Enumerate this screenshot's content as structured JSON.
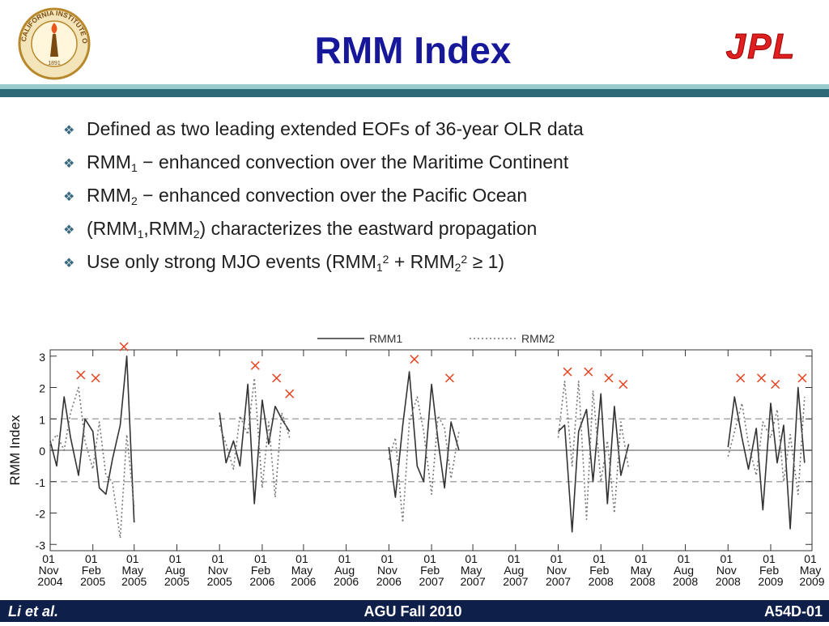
{
  "header": {
    "title": "RMM Index",
    "left_logo": {
      "ring": "CALIFORNIA INSTITUTE OF TECHNOLOGY",
      "year": "1891"
    },
    "right_logo": "JPL"
  },
  "bullets": [
    [
      {
        "t": "Defined as two leading extended EOFs of 36-year OLR data",
        "s": "normal"
      }
    ],
    [
      {
        "t": "RMM",
        "s": "normal"
      },
      {
        "t": "1",
        "s": "sub"
      },
      {
        "t": " − enhanced convection over the Maritime Continent",
        "s": "normal"
      }
    ],
    [
      {
        "t": "RMM",
        "s": "normal"
      },
      {
        "t": "2",
        "s": "sub"
      },
      {
        "t": " − enhanced convection over the Pacific Ocean",
        "s": "normal"
      }
    ],
    [
      {
        "t": "(RMM",
        "s": "normal"
      },
      {
        "t": "1",
        "s": "sub"
      },
      {
        "t": ",RMM",
        "s": "normal"
      },
      {
        "t": "2",
        "s": "sub"
      },
      {
        "t": ") characterizes the eastward propagation",
        "s": "normal"
      }
    ],
    [
      {
        "t": "Use only strong MJO events (RMM",
        "s": "normal"
      },
      {
        "t": "1",
        "s": "sub"
      },
      {
        "t": "2",
        "s": "sup"
      },
      {
        "t": " + RMM",
        "s": "normal"
      },
      {
        "t": "2",
        "s": "sub"
      },
      {
        "t": "2",
        "s": "sup"
      },
      {
        "t": " ≥ 1)",
        "s": "normal"
      }
    ]
  ],
  "chart_data": {
    "type": "line",
    "y_label": "RMM Index",
    "x": [
      "2004-11-01",
      "2004-11-15",
      "2004-12-01",
      "2004-12-15",
      "2005-01-01",
      "2005-01-15",
      "2005-02-01",
      "2005-02-15",
      "2005-03-01",
      "2005-03-15",
      "2005-04-01",
      "2005-04-15",
      "2005-05-01",
      "2005-08-01",
      "2005-11-01",
      "2005-11-15",
      "2005-12-01",
      "2005-12-15",
      "2006-01-01",
      "2006-01-15",
      "2006-02-01",
      "2006-02-15",
      "2006-03-01",
      "2006-03-15",
      "2006-04-01",
      "2006-08-01",
      "2006-11-01",
      "2006-11-15",
      "2006-12-01",
      "2006-12-15",
      "2007-01-01",
      "2007-01-15",
      "2007-02-01",
      "2007-02-15",
      "2007-03-01",
      "2007-03-15",
      "2007-04-01",
      "2007-08-01",
      "2007-11-01",
      "2007-11-15",
      "2007-12-01",
      "2007-12-15",
      "2008-01-01",
      "2008-01-15",
      "2008-02-01",
      "2008-02-15",
      "2008-03-01",
      "2008-03-15",
      "2008-04-01",
      "2008-08-01",
      "2008-11-01",
      "2008-11-15",
      "2008-12-01",
      "2008-12-15",
      "2009-01-01",
      "2009-01-15",
      "2009-02-01",
      "2009-02-15",
      "2009-03-01",
      "2009-03-15",
      "2009-04-01",
      "2009-04-15"
    ],
    "series": [
      {
        "name": "RMM1",
        "color": "#333333",
        "dash": "none",
        "values": [
          0.3,
          -0.5,
          1.7,
          0.4,
          -0.8,
          1.0,
          0.6,
          -1.2,
          -1.4,
          -0.3,
          0.8,
          3.0,
          -2.3,
          null,
          1.2,
          -0.4,
          0.3,
          -0.5,
          2.1,
          -1.7,
          1.6,
          0.2,
          1.4,
          1.0,
          0.6,
          null,
          0.1,
          -1.5,
          0.8,
          2.5,
          -0.5,
          -1.0,
          2.1,
          0.3,
          -1.2,
          0.9,
          0.0,
          null,
          0.6,
          0.8,
          -2.6,
          0.6,
          1.3,
          -1.0,
          1.8,
          -1.7,
          1.4,
          -0.8,
          0.2,
          null,
          0.1,
          1.7,
          0.4,
          -0.6,
          0.7,
          -1.9,
          1.5,
          -0.4,
          0.8,
          -2.5,
          2.0,
          -0.4
        ]
      },
      {
        "name": "RMM2",
        "color": "#777777",
        "dash": "2 3",
        "values": [
          0.2,
          0.5,
          0.0,
          1.2,
          2.0,
          0.3,
          -0.6,
          0.9,
          -0.8,
          -1.0,
          -2.8,
          0.5,
          -1.8,
          null,
          0.8,
          0.2,
          -0.6,
          1.1,
          0.5,
          2.3,
          -1.2,
          0.9,
          -1.5,
          1.2,
          0.4,
          null,
          -0.3,
          0.4,
          -2.3,
          0.9,
          1.7,
          0.6,
          -1.4,
          1.1,
          0.7,
          -0.9,
          0.6,
          null,
          0.4,
          2.2,
          -0.5,
          2.2,
          -2.2,
          1.9,
          -1.0,
          0.3,
          -2.0,
          0.9,
          -0.6,
          null,
          -0.2,
          0.6,
          1.5,
          0.2,
          -0.8,
          0.9,
          0.4,
          1.3,
          -1.0,
          0.5,
          -1.4,
          1.7
        ]
      }
    ],
    "markers": {
      "color": "#e8401c",
      "x": [
        "2005-01-06",
        "2005-02-07",
        "2005-04-09",
        "2006-01-17",
        "2006-03-04",
        "2006-04-01",
        "2006-12-26",
        "2007-03-12",
        "2007-11-21",
        "2008-01-05",
        "2008-02-18",
        "2008-03-20",
        "2008-11-28",
        "2009-01-12",
        "2009-02-11",
        "2009-04-10"
      ],
      "values": [
        2.4,
        2.3,
        3.3,
        2.7,
        2.3,
        1.8,
        2.9,
        2.3,
        2.5,
        2.5,
        2.3,
        2.1,
        2.3,
        2.3,
        2.1,
        2.3
      ]
    },
    "hlines": [
      {
        "value": 1,
        "dash": "8 5"
      },
      {
        "value": 0,
        "dash": "none"
      },
      {
        "value": -1,
        "dash": "8 5"
      }
    ],
    "xlim": [
      "2004-11-01",
      "2009-05-01"
    ],
    "xticks": [
      {
        "value": "2004-11-01",
        "label": "01 Nov 2004"
      },
      {
        "value": "2005-02-01",
        "label": "01 Feb 2005"
      },
      {
        "value": "2005-05-01",
        "label": "01 May 2005"
      },
      {
        "value": "2005-08-01",
        "label": "01 Aug 2005"
      },
      {
        "value": "2005-11-01",
        "label": "01 Nov 2005"
      },
      {
        "value": "2006-02-01",
        "label": "01 Feb 2006"
      },
      {
        "value": "2006-05-01",
        "label": "01 May 2006"
      },
      {
        "value": "2006-08-01",
        "label": "01 Aug 2006"
      },
      {
        "value": "2006-11-01",
        "label": "01 Nov 2006"
      },
      {
        "value": "2007-02-01",
        "label": "01 Feb 2007"
      },
      {
        "value": "2007-05-01",
        "label": "01 May 2007"
      },
      {
        "value": "2007-08-01",
        "label": "01 Aug 2007"
      },
      {
        "value": "2007-11-01",
        "label": "01 Nov 2007"
      },
      {
        "value": "2008-02-01",
        "label": "01 Feb 2008"
      },
      {
        "value": "2008-05-01",
        "label": "01 May 2008"
      },
      {
        "value": "2008-08-01",
        "label": "01 Aug 2008"
      },
      {
        "value": "2008-11-01",
        "label": "01 Nov 2008"
      },
      {
        "value": "2009-02-01",
        "label": "01 Feb 2009"
      },
      {
        "value": "2009-05-01",
        "label": "01 May 2009"
      }
    ],
    "ylim": [
      -3.2,
      3.2
    ],
    "yticks": [
      -3,
      -2,
      -1,
      0,
      1,
      2,
      3
    ]
  },
  "footer": {
    "left": "Li et al.",
    "center": "AGU Fall 2010",
    "right": "A54D-01"
  }
}
